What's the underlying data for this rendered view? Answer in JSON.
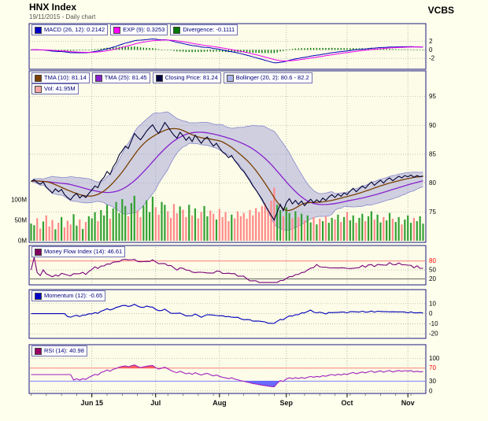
{
  "header": {
    "title": "HNX Index",
    "subtitle": "19/11/2015 - Daily chart",
    "brand": "VCBS"
  },
  "colors": {
    "background": "#FFFFEE",
    "panel_bg": "#FCFCE8",
    "panel_border": "#1A1A80",
    "grid": "#AAAAAA",
    "macd_line": "#0000BB",
    "signal_line": "#EE00EE",
    "histogram": "#007700",
    "close_line": "#000033",
    "tma10_line": "#7B3F00",
    "tma25_line": "#8822CC",
    "bollinger_fill": "#9898D8",
    "bollinger_edge": "#8888CC",
    "vol_up": "#33A033",
    "vol_down": "#FF8A8A",
    "mfi_line": "#7A007A",
    "momentum_line": "#0000BB",
    "rsi_line": "#A020C0",
    "rsi_overbought_fill": "#FF4444",
    "rsi_oversold_fill": "#5050FF"
  },
  "chart_data": {
    "type": "line",
    "title": "HNX Index",
    "subtitle": "19/11/2015 - Daily chart",
    "x_axis": {
      "labels": [
        "Jun 15",
        "Jul",
        "Aug",
        "Sep",
        "Oct",
        "Nov"
      ],
      "tick_indices": [
        20,
        41,
        62,
        84,
        104,
        124
      ],
      "n_points": 130
    },
    "panels": [
      {
        "id": "macd",
        "legend": [
          {
            "label": "MACD (26, 12): 0.2142",
            "color": "#0000CC"
          },
          {
            "label": "EXP (9): 0.3253",
            "color": "#FF00FF"
          },
          {
            "label": "Divergence: -0.1111",
            "color": "#007700"
          }
        ],
        "yticks": [
          {
            "v": 2,
            "label": "2",
            "color": "#000000"
          },
          {
            "v": 0,
            "label": "0",
            "color": "#000000"
          },
          {
            "v": -2,
            "label": "-2",
            "color": "#000000"
          }
        ]
      },
      {
        "id": "price",
        "legend": [
          {
            "label": "TMA (10): 81.14",
            "color": "#7B3F00"
          },
          {
            "label": "TMA (25): 81.45",
            "color": "#8822CC"
          },
          {
            "label": "Closing Price: 81.24",
            "color": "#000040"
          },
          {
            "label": "Bollinger (20, 2): 80.6 - 82.2",
            "color": "#AAB4E8"
          }
        ],
        "legend2": [
          {
            "label": "Vol: 41.95M",
            "color": "#FFA8A8"
          }
        ],
        "yticks": [
          {
            "v": 95,
            "label": "95",
            "color": "#000000"
          },
          {
            "v": 90,
            "label": "90",
            "color": "#000000"
          },
          {
            "v": 85,
            "label": "85",
            "color": "#000000"
          },
          {
            "v": 80,
            "label": "80",
            "color": "#000000"
          },
          {
            "v": 75,
            "label": "75",
            "color": "#000000"
          }
        ],
        "volume_ticks": [
          {
            "v": 100,
            "label": "100M"
          },
          {
            "v": 50,
            "label": "50M"
          },
          {
            "v": 0,
            "label": "0M"
          }
        ]
      },
      {
        "id": "mfi",
        "legend": [
          {
            "label": "Money Flow Index (14): 46.61",
            "color": "#800060"
          }
        ],
        "yticks": [
          {
            "v": 80,
            "label": "80",
            "color": "#FF0000"
          },
          {
            "v": 50,
            "label": "50",
            "color": "#000000"
          },
          {
            "v": 20,
            "label": "20",
            "color": "#000000"
          }
        ],
        "ref_lines": [
          {
            "v": 80,
            "color": "#FF8080"
          },
          {
            "v": 20,
            "color": "#606060"
          }
        ]
      },
      {
        "id": "momentum",
        "legend": [
          {
            "label": "Momentum (12): -0.65",
            "color": "#0000CC"
          }
        ],
        "yticks": [
          {
            "v": 10,
            "label": "10",
            "color": "#000000"
          },
          {
            "v": 0,
            "label": "0",
            "color": "#000000"
          },
          {
            "v": -10,
            "label": "-10",
            "color": "#000000"
          },
          {
            "v": -20,
            "label": "-20",
            "color": "#000000"
          }
        ]
      },
      {
        "id": "rsi",
        "legend": [
          {
            "label": "RSI (14): 40.98",
            "color": "#990066"
          }
        ],
        "yticks": [
          {
            "v": 100,
            "label": "100",
            "color": "#000000"
          },
          {
            "v": 70,
            "label": "70",
            "color": "#FF0000"
          },
          {
            "v": 30,
            "label": "30",
            "color": "#000000"
          },
          {
            "v": 0,
            "label": "0",
            "color": "#000000"
          }
        ],
        "ref_lines": [
          {
            "v": 70,
            "color": "#FF8080"
          },
          {
            "v": 30,
            "color": "#8080FF"
          }
        ]
      }
    ],
    "series": {
      "close": [
        80.3,
        80.6,
        80.1,
        79.8,
        80.2,
        79.3,
        78.8,
        78.3,
        79.0,
        78.5,
        78.9,
        78.0,
        77.5,
        77.1,
        77.8,
        78.2,
        77.4,
        77.9,
        77.5,
        78.2,
        78.8,
        79.5,
        79.2,
        80.4,
        81.0,
        82.0,
        81.5,
        82.8,
        83.6,
        84.9,
        85.6,
        86.4,
        86.0,
        87.3,
        88.6,
        88.0,
        87.5,
        88.2,
        89.0,
        89.6,
        90.1,
        89.2,
        88.6,
        89.5,
        90.5,
        89.8,
        89.0,
        88.3,
        87.8,
        88.8,
        88.2,
        87.4,
        88.0,
        87.2,
        88.3,
        87.6,
        86.9,
        87.6,
        88.0,
        87.1,
        86.4,
        86.9,
        86.1,
        85.4,
        85.0,
        84.4,
        84.8,
        83.9,
        83.3,
        82.5,
        82.0,
        81.2,
        80.4,
        79.5,
        78.8,
        78.0,
        77.2,
        76.2,
        75.3,
        74.4,
        73.6,
        75.0,
        76.3,
        75.2,
        76.6,
        77.3,
        76.4,
        77.0,
        76.3,
        76.9,
        76.1,
        76.7,
        77.2,
        76.6,
        77.1,
        76.7,
        77.4,
        77.0,
        77.6,
        78.0,
        77.5,
        78.1,
        77.7,
        78.3,
        78.0,
        78.6,
        79.1,
        78.5,
        79.0,
        79.5,
        79.1,
        79.7,
        80.2,
        79.6,
        80.1,
        80.5,
        80.0,
        80.6,
        80.9,
        80.4,
        80.8,
        81.2,
        80.9,
        81.3,
        81.1,
        81.4,
        81.0,
        81.3,
        81.1,
        81.24
      ],
      "volume_m": [
        42,
        38,
        55,
        30,
        47,
        62,
        35,
        51,
        28,
        44,
        58,
        33,
        49,
        40,
        65,
        37,
        52,
        29,
        46,
        60,
        55,
        70,
        48,
        75,
        62,
        88,
        54,
        79,
        95,
        68,
        102,
        85,
        60,
        92,
        110,
        74,
        58,
        86,
        99,
        70,
        108,
        82,
        64,
        95,
        88,
        72,
        56,
        90,
        67,
        84,
        76,
        58,
        88,
        62,
        79,
        55,
        70,
        85,
        60,
        74,
        66,
        52,
        78,
        58,
        70,
        48,
        64,
        55,
        72,
        60,
        68,
        54,
        75,
        62,
        80,
        70,
        85,
        92,
        78,
        98,
        130,
        88,
        75,
        60,
        82,
        68,
        55,
        72,
        58,
        66,
        50,
        62,
        45,
        58,
        40,
        54,
        48,
        60,
        44,
        56,
        52,
        64,
        46,
        58,
        70,
        50,
        62,
        44,
        56,
        66,
        48,
        60,
        72,
        52,
        64,
        45,
        58,
        50,
        68,
        54,
        46,
        58,
        40,
        52,
        62,
        44,
        56,
        48,
        60,
        41.95
      ]
    }
  }
}
